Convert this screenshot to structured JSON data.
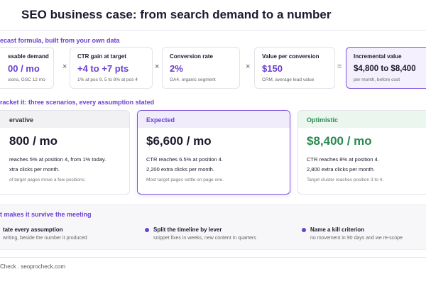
{
  "header": {
    "title": "SEO business case: from search demand to a number"
  },
  "formula": {
    "heading": "ecast formula, built from your own data",
    "cards": [
      {
        "label": "ssable demand",
        "value": "00 / mo",
        "note": "sions, GSC 12 mo"
      },
      {
        "label": "CTR gain at target",
        "value": "+4 to +7 pts",
        "note": "1% at pos 9, 5 to 8% at pos 4"
      },
      {
        "label": "Conversion rate",
        "value": "2%",
        "note": "GA4, organic segment"
      },
      {
        "label": "Value per conversion",
        "value": "$150",
        "note": "CRM, average lead value"
      },
      {
        "label": "Incremental value",
        "value": "$4,800 to $8,400",
        "note": "per month, before cost"
      }
    ],
    "operators": [
      "×",
      "×",
      "×",
      "="
    ]
  },
  "scenarios": {
    "heading": "racket it: three scenarios, every assumption stated",
    "cards": [
      {
        "name": "ervative",
        "value": "800 / mo",
        "lines": [
          "reaches 5% at position 4, from 1% today.",
          "xtra clicks per month."
        ],
        "note": "of target pages move a few positions."
      },
      {
        "name": "Expected",
        "value": "$6,600 / mo",
        "lines": [
          "CTR reaches 6.5% at position 4.",
          "2,200 extra clicks per month."
        ],
        "note": "Most target pages settle on page one."
      },
      {
        "name": "Optimistic",
        "value": "$8,400 / mo",
        "lines": [
          "CTR reaches 8% at position 4.",
          "2,800 extra clicks per month."
        ],
        "note": "Target cluster reaches position 3 to 4."
      }
    ]
  },
  "tips": {
    "heading": "t makes it survive the meeting",
    "items": [
      {
        "title": "tate every assumption",
        "text": "writing, beside the number it produced"
      },
      {
        "title": "Split the timeline by lever",
        "text": "snippet fixes in weeks, new content in quarters"
      },
      {
        "title": "Name a kill criterion",
        "text": "no movement in 90 days and we re-scope"
      }
    ]
  },
  "footer": {
    "text": "Check . seoprocheck.com"
  }
}
